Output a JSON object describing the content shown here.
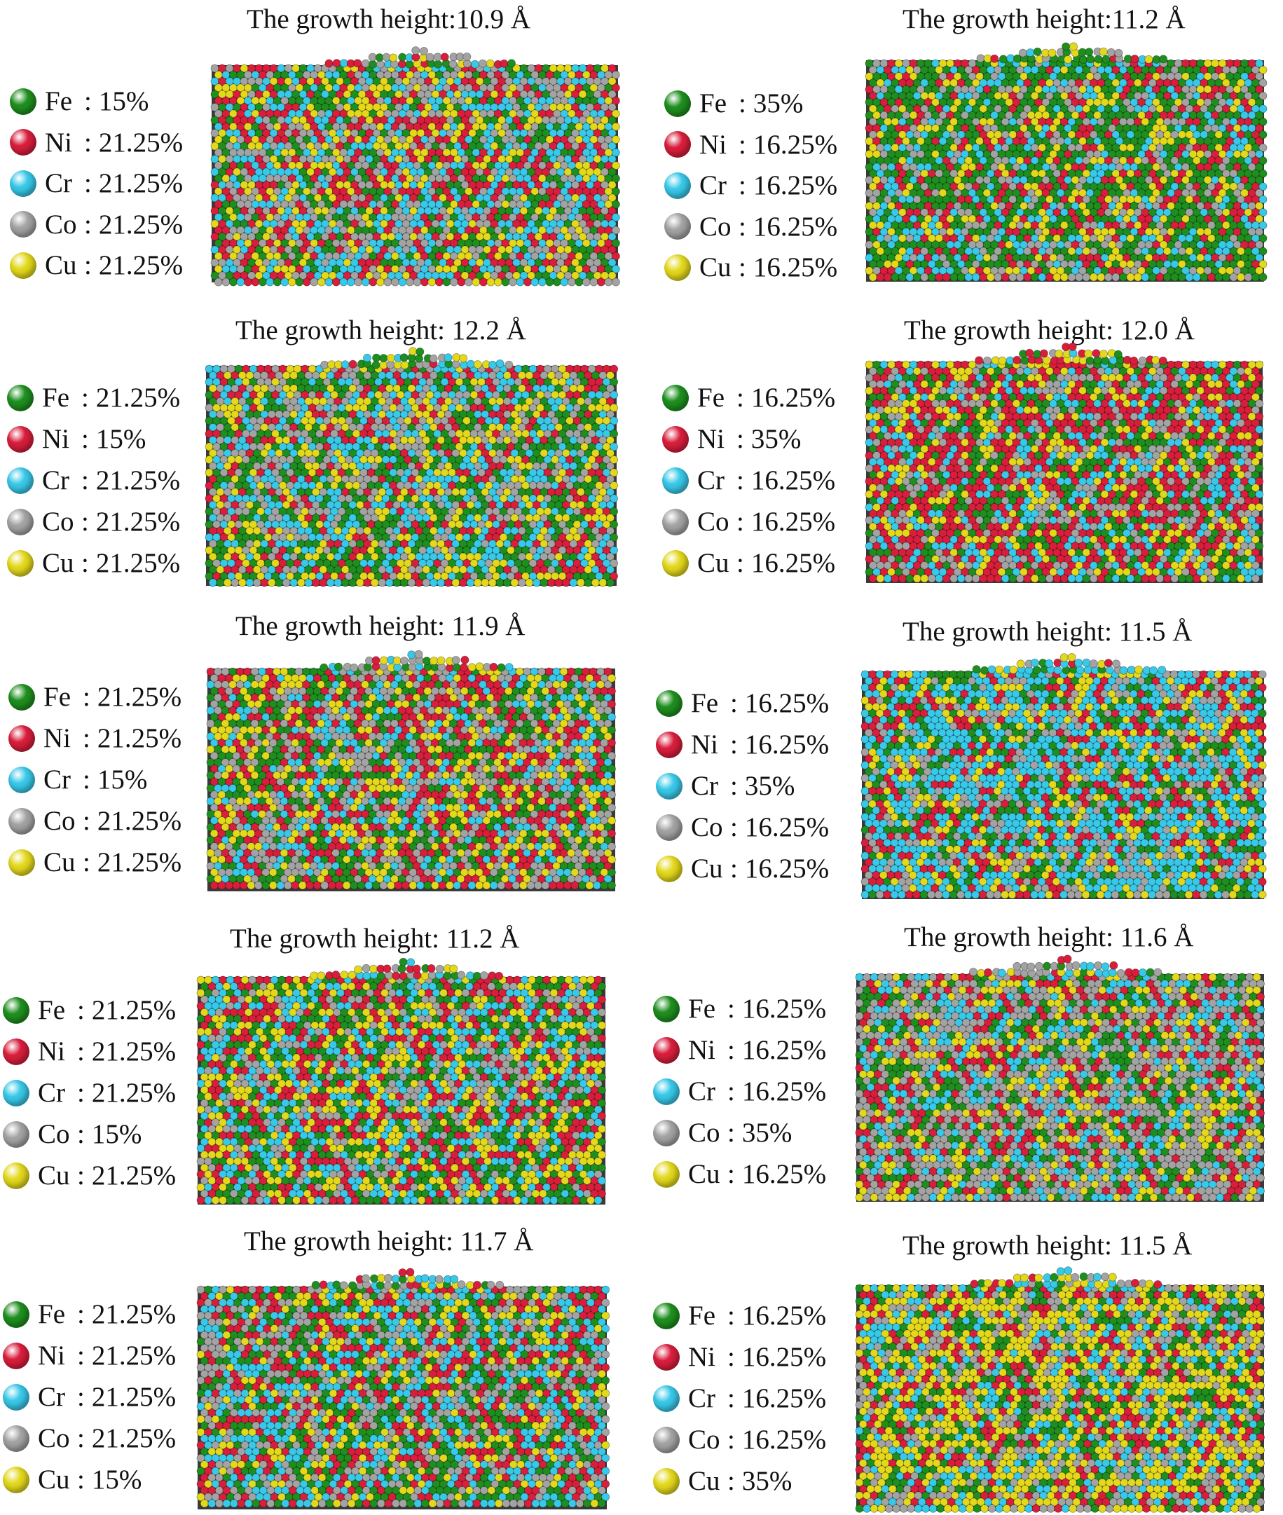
{
  "colors": {
    "Fe": "#1e8f1e",
    "Ni": "#d91e3c",
    "Cr": "#38c8e8",
    "Co": "#a3a3a3",
    "Cu": "#e3d81c"
  },
  "panels": [
    {
      "title": "The growth height:10.9 Å",
      "legend": [
        {
          "symbol": "Fe",
          "value": "15%"
        },
        {
          "symbol": "Ni",
          "value": "21.25%"
        },
        {
          "symbol": "Cr",
          "value": "21.25%"
        },
        {
          "symbol": "Co",
          "value": "21.25%"
        },
        {
          "symbol": "Cu",
          "value": "21.25%"
        }
      ]
    },
    {
      "title": "The growth height:11.2 Å",
      "legend": [
        {
          "symbol": "Fe",
          "value": "35%"
        },
        {
          "symbol": "Ni",
          "value": "16.25%"
        },
        {
          "symbol": "Cr",
          "value": "16.25%"
        },
        {
          "symbol": "Co",
          "value": "16.25%"
        },
        {
          "symbol": "Cu",
          "value": "16.25%"
        }
      ]
    },
    {
      "title": "The growth height: 12.2 Å",
      "legend": [
        {
          "symbol": "Fe",
          "value": "21.25%"
        },
        {
          "symbol": "Ni",
          "value": "15%"
        },
        {
          "symbol": "Cr",
          "value": "21.25%"
        },
        {
          "symbol": "Co",
          "value": "21.25%"
        },
        {
          "symbol": "Cu",
          "value": "21.25%"
        }
      ]
    },
    {
      "title": "The growth height: 12.0 Å",
      "legend": [
        {
          "symbol": "Fe",
          "value": "16.25%"
        },
        {
          "symbol": "Ni",
          "value": "35%"
        },
        {
          "symbol": "Cr",
          "value": "16.25%"
        },
        {
          "symbol": "Co",
          "value": "16.25%"
        },
        {
          "symbol": "Cu",
          "value": "16.25%"
        }
      ]
    },
    {
      "title": "The growth height: 11.9 Å",
      "legend": [
        {
          "symbol": "Fe",
          "value": "21.25%"
        },
        {
          "symbol": "Ni",
          "value": "21.25%"
        },
        {
          "symbol": "Cr",
          "value": "15%"
        },
        {
          "symbol": "Co",
          "value": "21.25%"
        },
        {
          "symbol": "Cu",
          "value": "21.25%"
        }
      ]
    },
    {
      "title": "The growth height: 11.5 Å",
      "legend": [
        {
          "symbol": "Fe",
          "value": "16.25%"
        },
        {
          "symbol": "Ni",
          "value": "16.25%"
        },
        {
          "symbol": "Cr",
          "value": "35%"
        },
        {
          "symbol": "Co",
          "value": "16.25%"
        },
        {
          "symbol": "Cu",
          "value": "16.25%"
        }
      ]
    },
    {
      "title": "The growth height: 11.2 Å",
      "legend": [
        {
          "symbol": "Fe",
          "value": "21.25%"
        },
        {
          "symbol": "Ni",
          "value": "21.25%"
        },
        {
          "symbol": "Cr",
          "value": "21.25%"
        },
        {
          "symbol": "Co",
          "value": "15%"
        },
        {
          "symbol": "Cu",
          "value": "21.25%"
        }
      ]
    },
    {
      "title": "The growth height: 11.6 Å",
      "legend": [
        {
          "symbol": "Fe",
          "value": "16.25%"
        },
        {
          "symbol": "Ni",
          "value": "16.25%"
        },
        {
          "symbol": "Cr",
          "value": "16.25%"
        },
        {
          "symbol": "Co",
          "value": "35%"
        },
        {
          "symbol": "Cu",
          "value": "16.25%"
        }
      ]
    },
    {
      "title": "The growth height: 11.7 Å",
      "legend": [
        {
          "symbol": "Fe",
          "value": "21.25%"
        },
        {
          "symbol": "Ni",
          "value": "21.25%"
        },
        {
          "symbol": "Cr",
          "value": "21.25%"
        },
        {
          "symbol": "Co",
          "value": "21.25%"
        },
        {
          "symbol": "Cu",
          "value": "15%"
        }
      ]
    },
    {
      "title": "The growth height: 11.5 Å",
      "legend": [
        {
          "symbol": "Fe",
          "value": "16.25%"
        },
        {
          "symbol": "Ni",
          "value": "16.25%"
        },
        {
          "symbol": "Cr",
          "value": "16.25%"
        },
        {
          "symbol": "Co",
          "value": "16.25%"
        },
        {
          "symbol": "Cu",
          "value": "35%"
        }
      ]
    }
  ]
}
